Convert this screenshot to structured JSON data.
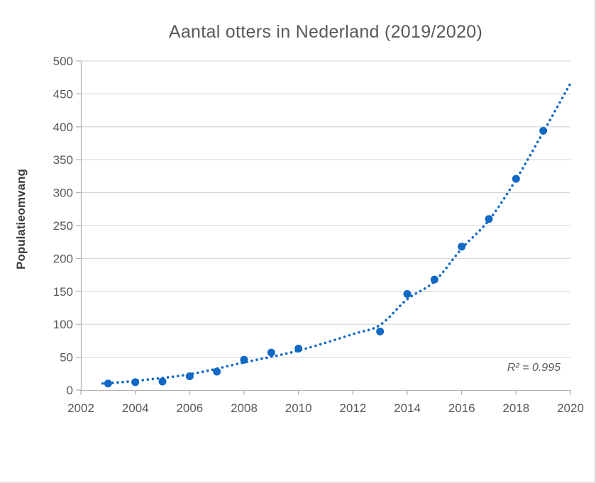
{
  "chart_data": {
    "type": "scatter",
    "title": "Aantal otters in Nederland (2019/2020)",
    "xlabel": "",
    "ylabel": "Populatieomvang",
    "x": [
      2003,
      2004,
      2005,
      2006,
      2007,
      2008,
      2009,
      2010,
      2013,
      2014,
      2015,
      2016,
      2017,
      2018,
      2019
    ],
    "y": [
      10,
      12,
      13,
      21,
      28,
      46,
      57,
      63,
      89,
      146,
      168,
      218,
      260,
      321,
      394
    ],
    "xlim": [
      2002,
      2020
    ],
    "ylim": [
      0,
      500
    ],
    "x_ticks": [
      2002,
      2004,
      2006,
      2008,
      2010,
      2012,
      2014,
      2016,
      2018,
      2020
    ],
    "y_ticks": [
      0,
      50,
      100,
      150,
      200,
      250,
      300,
      350,
      400,
      450,
      500
    ],
    "grid": "horizontal-only",
    "legend": "none",
    "annotation": "R² = 0.995",
    "trendline": {
      "style": "dotted",
      "r_squared": 0.995,
      "points": [
        [
          2002.8,
          10
        ],
        [
          2004,
          14
        ],
        [
          2006,
          24
        ],
        [
          2008,
          42
        ],
        [
          2010,
          60
        ],
        [
          2012,
          85
        ],
        [
          2013,
          99
        ],
        [
          2014,
          138
        ],
        [
          2015,
          165
        ],
        [
          2016,
          215
        ],
        [
          2017,
          258
        ],
        [
          2018,
          320
        ],
        [
          2019,
          392
        ],
        [
          2020,
          466
        ]
      ]
    },
    "colors": {
      "points": "#1169c4",
      "trendline": "#1169c4",
      "gridline": "#dadada",
      "axis": "#b3b3b3",
      "tick_text": "#595959",
      "title_text": "#595959",
      "y_title_text": "#404040"
    }
  }
}
